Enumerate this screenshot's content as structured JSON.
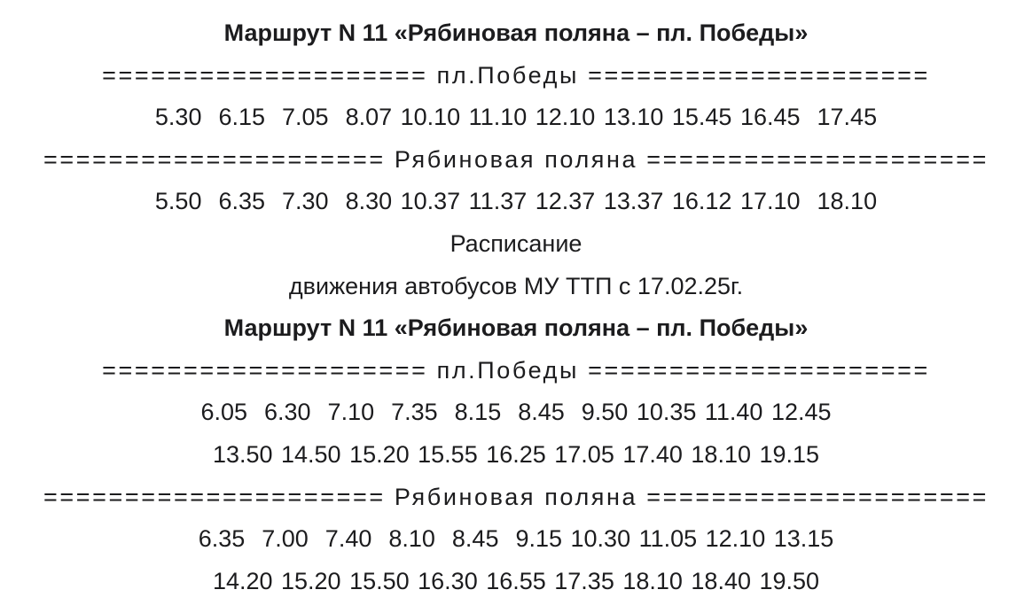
{
  "blocks": [
    {
      "title": "Маршрут N 11 «Рябиновая поляна – пл. Победы»",
      "sections": [
        {
          "header": "==================== пл.Победы =====================",
          "rows": [
            "5.30  6.15  7.05  8.07 10.10 11.10 12.10 13.10 15.45 16.45  17.45"
          ]
        },
        {
          "header": "===================== Рябиновая поляна =====================",
          "rows": [
            "5.50  6.35  7.30  8.30 10.37 11.37 12.37 13.37 16.12 17.10  18.10"
          ]
        }
      ]
    },
    {
      "caption_1": "Расписание",
      "caption_2": "движения автобусов МУ ТТП с 17.02.25г.",
      "title": "Маршрут N 11 «Рябиновая поляна – пл. Победы»",
      "sections": [
        {
          "header": "==================== пл.Победы =====================",
          "rows": [
            "6.05  6.30  7.10  7.35  8.15  8.45  9.50 10.35 11.40 12.45",
            "13.50 14.50 15.20 15.55 16.25 17.05 17.40 18.10 19.15"
          ]
        },
        {
          "header": "===================== Рябиновая поляна =====================",
          "rows": [
            "6.35  7.00  7.40  8.10  8.45  9.15 10.30 11.05 12.10 13.15",
            "14.20 15.20 15.50 16.30 16.55 17.35 18.10 18.40 19.50"
          ]
        }
      ]
    }
  ]
}
